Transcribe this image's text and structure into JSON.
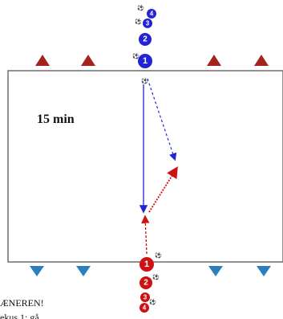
{
  "diagram": {
    "duration_label": "15 min",
    "notes": [
      "ÆNEREN!",
      "ekus 1: gå"
    ],
    "colors": {
      "blue_team": "#2323d6",
      "red_team": "#cc1212",
      "cone_top": "#a3231e",
      "cone_bottom": "#2a7fbd"
    },
    "blue_queue": [
      "1",
      "2",
      "3",
      "4"
    ],
    "red_queue": [
      "1",
      "2",
      "3",
      "4"
    ],
    "icons": [
      "triangle-cone-icon",
      "ball-icon",
      "arrow-icon"
    ]
  }
}
